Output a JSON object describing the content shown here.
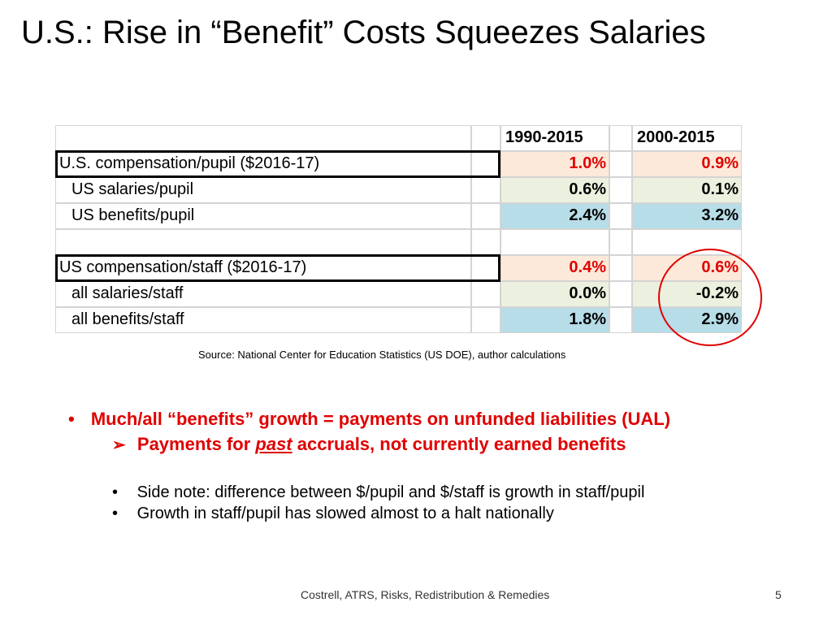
{
  "title": "U.S.:  Rise in “Benefit” Costs Squeezes Salaries",
  "colors": {
    "peach": "#fde9d9",
    "green": "#ebf1de",
    "blue": "#b7dde8",
    "red": "#e00000"
  },
  "table": {
    "headers": [
      "1990-2015",
      "2000-2015"
    ],
    "rows": [
      {
        "label": "U.S. compensation/pupil ($2016-17)",
        "v1": "1.0%",
        "v2": "0.9%",
        "style": "peach",
        "red": true,
        "indent": false
      },
      {
        "label": "US salaries/pupil",
        "v1": "0.6%",
        "v2": "0.1%",
        "style": "green",
        "red": false,
        "indent": true
      },
      {
        "label": "US benefits/pupil",
        "v1": "2.4%",
        "v2": "3.2%",
        "style": "blue",
        "red": false,
        "indent": true
      },
      {
        "label": "",
        "v1": "",
        "v2": "",
        "style": "blank",
        "red": false,
        "indent": false
      },
      {
        "label": "US compensation/staff ($2016-17)",
        "v1": "0.4%",
        "v2": "0.6%",
        "style": "peach",
        "red": true,
        "indent": false
      },
      {
        "label": "all salaries/staff",
        "v1": "0.0%",
        "v2": "-0.2%",
        "style": "green",
        "red": false,
        "indent": true
      },
      {
        "label": "all benefits/staff",
        "v1": "1.8%",
        "v2": "2.9%",
        "style": "blue",
        "red": false,
        "indent": true
      }
    ]
  },
  "source": "Source:  National Center for Education Statistics (US DOE), author calculations",
  "bullets": {
    "main": "Much/all “benefits” growth = payments on unfunded liabilities (UAL)",
    "sub_pre": "Payments for ",
    "sub_em": "past",
    "sub_post": " accruals, not currently earned benefits",
    "note1": "Side note:  difference between $/pupil and $/staff is growth in staff/pupil",
    "note2": "Growth in staff/pupil has slowed almost to a halt nationally"
  },
  "footer": "Costrell, ATRS, Risks, Redistribution & Remedies",
  "page_number": "5"
}
